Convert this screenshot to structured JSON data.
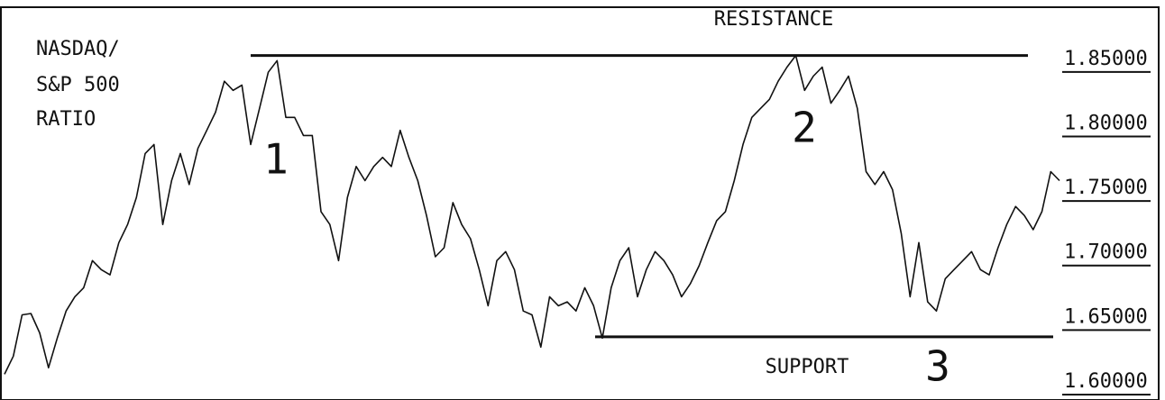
{
  "chart_data": {
    "type": "line",
    "title": [
      "NASDAQ/",
      "S&P 500",
      "RATIO"
    ],
    "series": [
      {
        "color": "#111111",
        "values": [
          1.606,
          1.62,
          1.652,
          1.653,
          1.638,
          1.611,
          1.634,
          1.655,
          1.666,
          1.673,
          1.694,
          1.687,
          1.683,
          1.708,
          1.722,
          1.743,
          1.777,
          1.784,
          1.722,
          1.756,
          1.777,
          1.753,
          1.781,
          1.795,
          1.809,
          1.833,
          1.826,
          1.83,
          1.784,
          1.812,
          1.84,
          1.849,
          1.805,
          1.805,
          1.791,
          1.791,
          1.732,
          1.722,
          1.694,
          1.743,
          1.767,
          1.756,
          1.767,
          1.774,
          1.767,
          1.795,
          1.774,
          1.756,
          1.729,
          1.697,
          1.704,
          1.739,
          1.722,
          1.711,
          1.687,
          1.659,
          1.694,
          1.701,
          1.687,
          1.655,
          1.652,
          1.627,
          1.666,
          1.659,
          1.662,
          1.655,
          1.673,
          1.659,
          1.634,
          1.673,
          1.694,
          1.704,
          1.666,
          1.687,
          1.701,
          1.694,
          1.683,
          1.666,
          1.676,
          1.69,
          1.708,
          1.725,
          1.732,
          1.756,
          1.784,
          1.805,
          1.812,
          1.819,
          1.833,
          1.844,
          1.853,
          1.826,
          1.837,
          1.844,
          1.816,
          1.826,
          1.837,
          1.812,
          1.763,
          1.753,
          1.763,
          1.749,
          1.715,
          1.666,
          1.708,
          1.662,
          1.655,
          1.68,
          1.687,
          1.694,
          1.701,
          1.687,
          1.683,
          1.704,
          1.722,
          1.736,
          1.729,
          1.718,
          1.732,
          1.763,
          1.756
        ]
      }
    ],
    "reference_lines": [
      {
        "label": "RESISTANCE",
        "value": 1.853
      },
      {
        "label": "SUPPORT",
        "value": 1.635
      }
    ],
    "annotations": [
      "1",
      "2",
      "3"
    ],
    "ylim": [
      1.586,
      1.896
    ],
    "yticks": [
      {
        "value": 1.85,
        "label": "1.85000"
      },
      {
        "value": 1.8,
        "label": "1.80000"
      },
      {
        "value": 1.75,
        "label": "1.75000"
      },
      {
        "value": 1.7,
        "label": "1.70000"
      },
      {
        "value": 1.65,
        "label": "1.65000"
      },
      {
        "value": 1.6,
        "label": "1.60000"
      }
    ],
    "yaxis_side": "right"
  }
}
